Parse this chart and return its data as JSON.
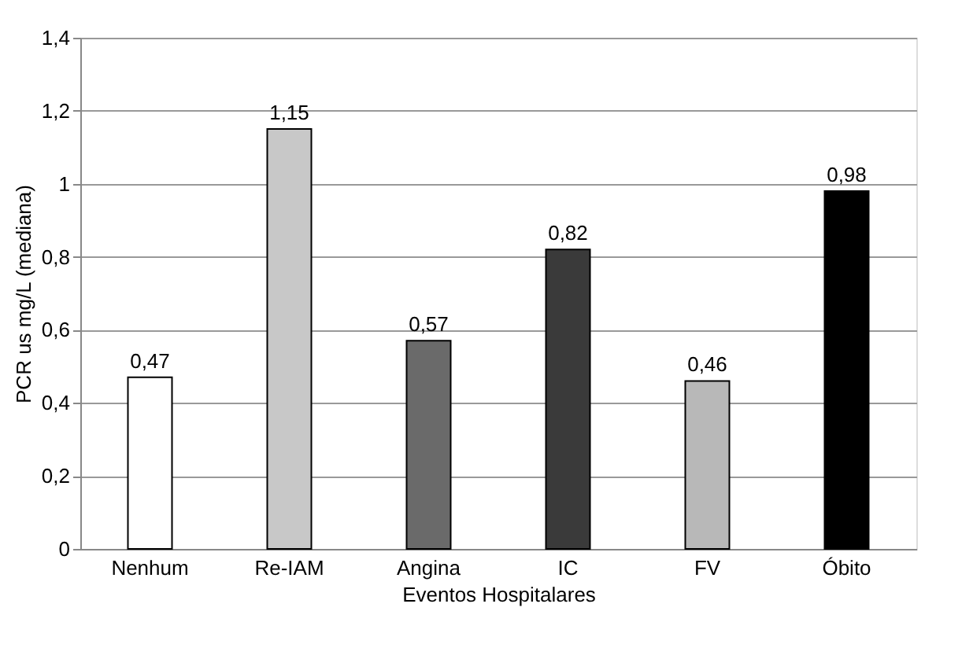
{
  "chart_data": {
    "type": "bar",
    "xlabel": "Eventos Hospitalares",
    "ylabel": "PCR us mg/L (mediana)",
    "categories": [
      "Nenhum",
      "Re-IAM",
      "Angina",
      "IC",
      "FV",
      "Óbito"
    ],
    "values": [
      0.47,
      1.15,
      0.57,
      0.82,
      0.46,
      0.98
    ],
    "value_labels": [
      "0,47",
      "1,15",
      "0,57",
      "0,82",
      "0,46",
      "0,98"
    ],
    "colors": [
      "#ffffff",
      "#c8c8c8",
      "#6a6a6a",
      "#3a3a3a",
      "#b8b8b8",
      "#000000"
    ],
    "ylim": [
      0,
      1.4
    ],
    "yticks": [
      0,
      {
        "value": 0.2,
        "label": "0,2"
      },
      {
        "value": 0.4,
        "label": "0,4"
      },
      {
        "value": 0.6,
        "label": "0,6"
      },
      {
        "value": 0.8,
        "label": "0,8"
      },
      1,
      {
        "value": 1.2,
        "label": "1,2"
      },
      {
        "value": 1.4,
        "label": "1,4"
      }
    ],
    "grid": "y"
  }
}
